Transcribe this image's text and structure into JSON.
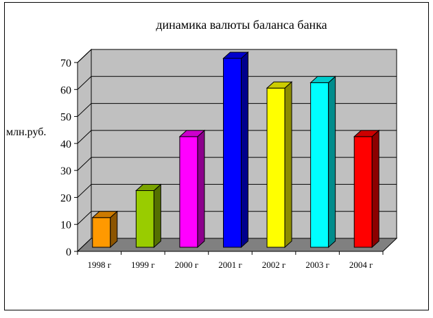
{
  "chart_data": {
    "type": "bar",
    "title": "динамика валюты баланса банка",
    "xlabel": "",
    "ylabel": "млн.руб.",
    "ylim": [
      0,
      70
    ],
    "yticks": [
      "0",
      "10",
      "20",
      "30",
      "40",
      "50",
      "60",
      "70"
    ],
    "grid": true,
    "legend": "none",
    "categories": [
      "1998 г",
      "1999 г",
      "2000 г",
      "2001 г",
      "2002 г",
      "2003 г",
      "2004 г"
    ],
    "values": [
      11,
      21,
      41,
      70,
      59,
      61,
      41
    ],
    "bar_colors": [
      "#FF9900",
      "#99CC00",
      "#FF00FF",
      "#0000FF",
      "#FFFF00",
      "#00FFFF",
      "#FF0000"
    ],
    "wall_color": "#C0C0C0",
    "floor_color": "#808080"
  }
}
